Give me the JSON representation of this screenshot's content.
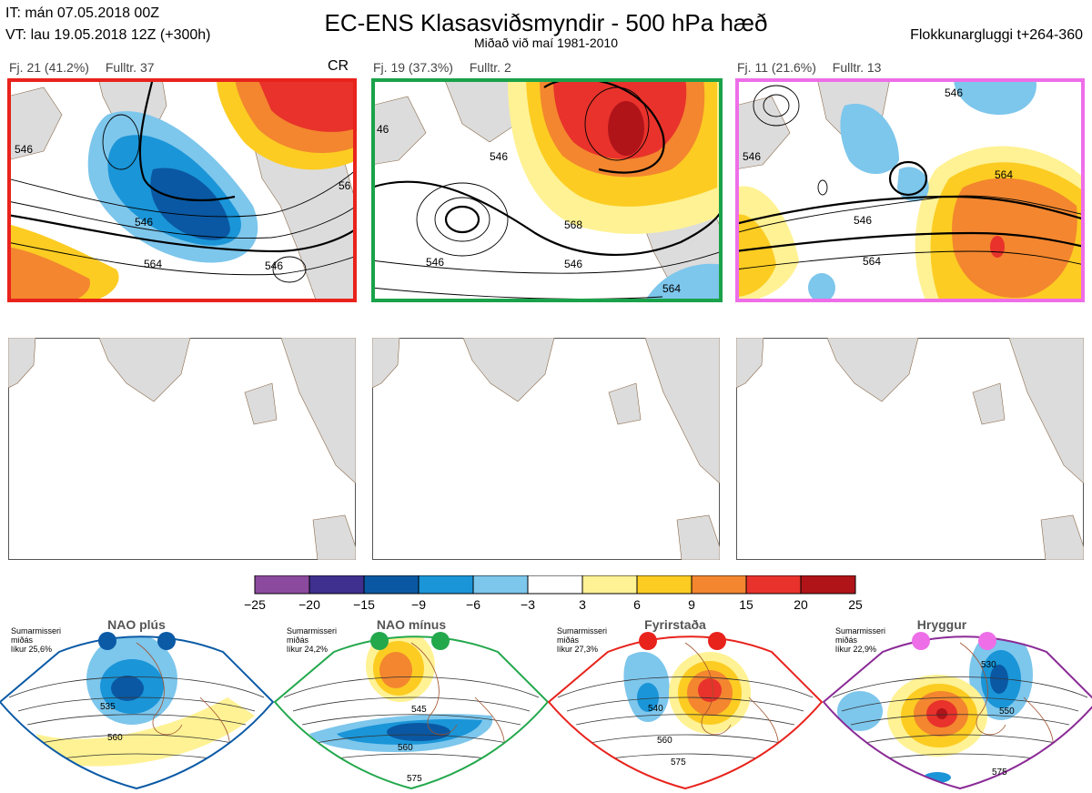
{
  "header": {
    "it_line": "IT: mán 07.05.2018 00Z",
    "vt_line": "VT: lau 19.05.2018 12Z  (+300h)",
    "title": "EC-ENS Klasasviðsmyndir - 500 hPa hæð",
    "subtitle": "Miðað við maí 1981-2010",
    "window": "Flokkunargluggi t+264-360"
  },
  "clusters": [
    {
      "count_label": "Fj. 21 (41.2%)",
      "rep_label": "Fulltr. 37",
      "border": "#e8231c",
      "tag": "CR"
    },
    {
      "count_label": "Fj. 19 (37.3%)",
      "rep_label": "Fulltr. 2",
      "border": "#1aa24a",
      "tag": ""
    },
    {
      "count_label": "Fj. 11 (21.6%)",
      "rep_label": "Fulltr. 13",
      "border": "#ee6ee8",
      "tag": ""
    }
  ],
  "contour_labels": {
    "p1": [
      "546",
      "564",
      "546",
      "546",
      "56"
    ],
    "p2": [
      "546",
      "546",
      "546",
      "568",
      "564",
      "46"
    ],
    "p3": [
      "546",
      "564",
      "546",
      "564",
      "546"
    ]
  },
  "colorbar": {
    "ticks": [
      "−25",
      "−20",
      "−15",
      "−9",
      "−6",
      "−3",
      "3",
      "6",
      "9",
      "15",
      "20",
      "25"
    ],
    "colors": [
      "#8c4a9e",
      "#3f2f8f",
      "#0a58a3",
      "#1a95d8",
      "#7dc6ec",
      "#ffffff",
      "#fff294",
      "#fccc22",
      "#f3862f",
      "#e8322b",
      "#b01419"
    ]
  },
  "regimes": [
    {
      "name": "NAO plús",
      "season": "Sumarmisseri",
      "season2": "miðás",
      "prob": "líkur 25,6%",
      "border": "#0b5aa6",
      "labels": [
        "535",
        "560"
      ]
    },
    {
      "name": "NAO mínus",
      "season": "Sumarmisseri",
      "season2": "miðás",
      "prob": "líkur 24,2%",
      "border": "#23a84c",
      "labels": [
        "545",
        "560",
        "575"
      ]
    },
    {
      "name": "Fyrirstaða",
      "season": "Sumarmisseri",
      "season2": "miðás",
      "prob": "líkur 27,3%",
      "border": "#e8231c",
      "labels": [
        "540",
        "560",
        "575"
      ]
    },
    {
      "name": "Hryggur",
      "season": "Sumarmisseri",
      "season2": "miðás",
      "prob": "líkur 22,9%",
      "border": "#8a2a96",
      "labels": [
        "530",
        "550",
        "575"
      ]
    }
  ],
  "chart_data": {
    "type": "heatmap",
    "title": "EC-ENS Klasasviðsmyndir - 500 hPa hæð",
    "subtitle": "Miðað við maí 1981-2010",
    "colorbar_ticks": [
      -25,
      -20,
      -15,
      -9,
      -6,
      -3,
      3,
      6,
      9,
      15,
      20,
      25
    ],
    "clusters": [
      {
        "members": 21,
        "percent": 41.2,
        "representative": 37
      },
      {
        "members": 19,
        "percent": 37.3,
        "representative": 2
      },
      {
        "members": 11,
        "percent": 21.6,
        "representative": 13
      }
    ],
    "regimes": [
      {
        "name": "NAO plús",
        "probability_percent": 25.6
      },
      {
        "name": "NAO mínus",
        "probability_percent": 24.2
      },
      {
        "name": "Fyrirstaða",
        "probability_percent": 27.3
      },
      {
        "name": "Hryggur",
        "probability_percent": 22.9
      }
    ]
  }
}
